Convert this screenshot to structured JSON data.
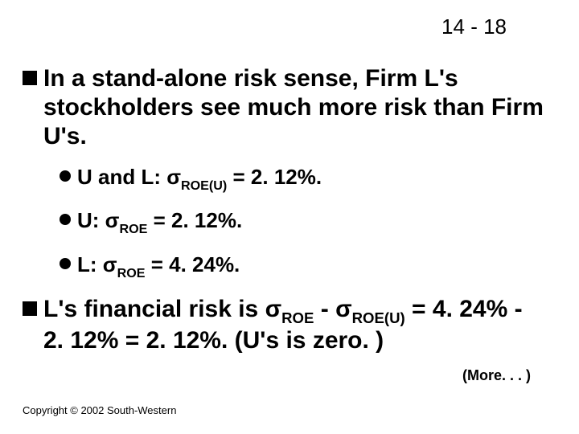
{
  "page_number": "14 - 18",
  "main1": "In a stand-alone risk sense, Firm L's stockholders see much more risk than Firm U's.",
  "sub1_pre": "U and L:  σ",
  "sub1_sub": "ROE(U)",
  "sub1_post": " = 2. 12%.",
  "sub2_pre": "U:  σ",
  "sub2_sub": "ROE",
  "sub2_post": " = 2. 12%.",
  "sub3_pre": "L:  σ",
  "sub3_sub": "ROE",
  "sub3_post": " = 4. 24%.",
  "main2_a": "L's financial risk is σ",
  "main2_sub1": "ROE",
  "main2_b": " - σ",
  "main2_sub2": "ROE(U)",
  "main2_c": " = 4. 24% - 2. 12% = 2. 12%.  (U's is zero. )",
  "more": "(More. . . )",
  "copyright": "Copyright © 2002 South-Western",
  "colors": {
    "text": "#000000",
    "background": "#ffffff",
    "bullet": "#000000"
  },
  "font_sizes_pt": {
    "page_number": 20,
    "bullet_l1": 23,
    "bullet_l2": 20,
    "more": 14,
    "copyright": 10
  }
}
